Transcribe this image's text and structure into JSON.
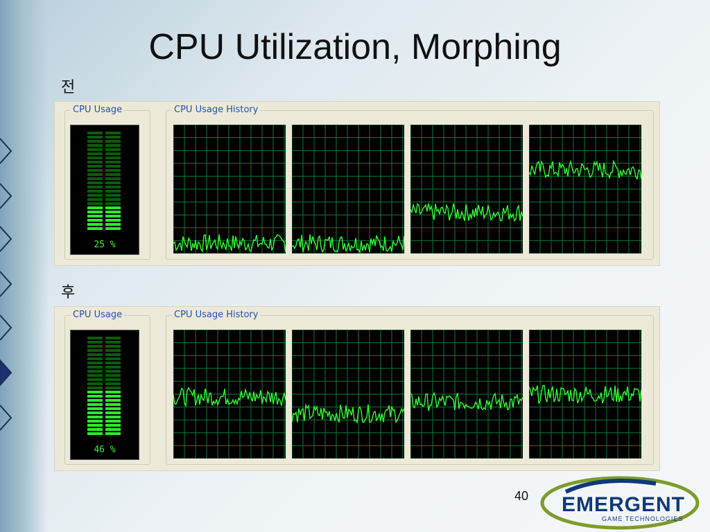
{
  "slide": {
    "title": "CPU Utilization, Morphing",
    "page_number": "40"
  },
  "sections": [
    {
      "label": "전",
      "cpu_usage_group": "CPU Usage",
      "history_group": "CPU Usage History",
      "usage_text": "25 %",
      "usage_percent": 25,
      "core_levels": [
        8,
        8,
        32,
        65
      ]
    },
    {
      "label": "후",
      "cpu_usage_group": "CPU Usage",
      "history_group": "CPU Usage History",
      "usage_text": "46 %",
      "usage_percent": 46,
      "core_levels": [
        48,
        35,
        44,
        50
      ]
    }
  ],
  "logo": {
    "name": "EMERGENT",
    "tagline": "GAME TECHNOLOGIES"
  },
  "colors": {
    "graph_line": "#2eff2e",
    "grid": "#0b7a3a",
    "meter_on": "#2bea2b",
    "meter_off": "#0d5a0d",
    "group_label": "#1f4fb8"
  }
}
